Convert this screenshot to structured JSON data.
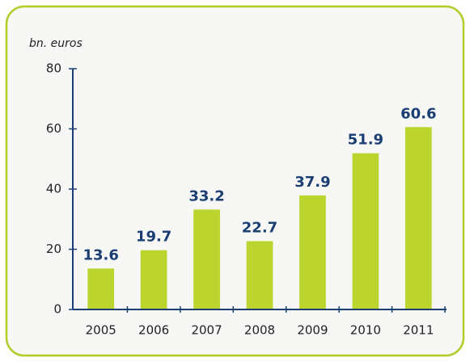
{
  "chart_data": {
    "type": "bar",
    "y_label": "bn. euros",
    "categories": [
      "2005",
      "2006",
      "2007",
      "2008",
      "2009",
      "2010",
      "2011"
    ],
    "values": [
      13.6,
      19.7,
      33.2,
      22.7,
      37.9,
      51.9,
      60.6
    ],
    "color": "#bcd42e",
    "label_color": "#1c3f73",
    "ylim": [
      0,
      80
    ],
    "yticks": [
      0,
      20,
      40,
      60,
      80
    ],
    "grid": false
  }
}
